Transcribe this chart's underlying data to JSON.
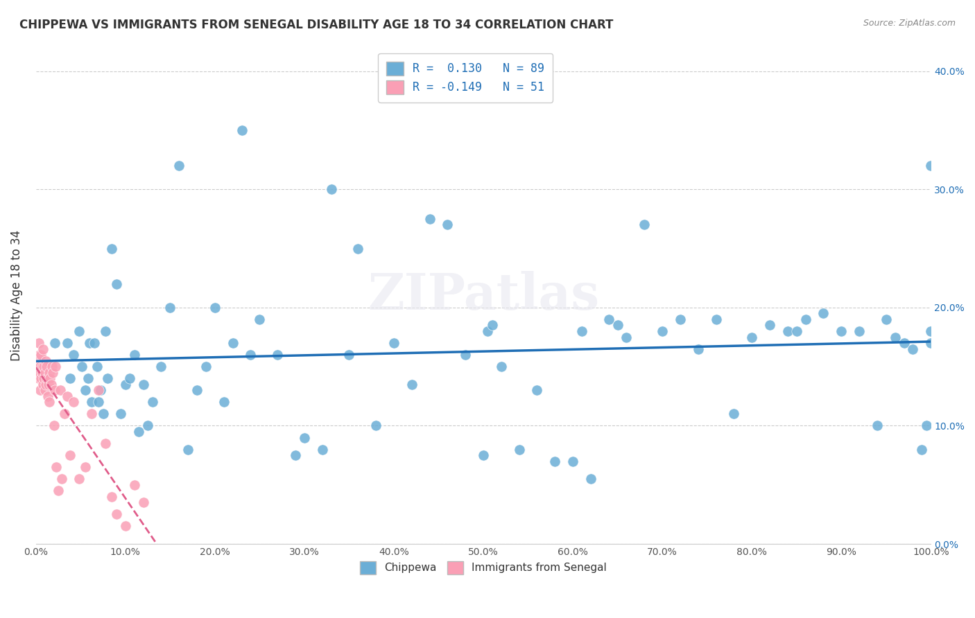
{
  "title": "CHIPPEWA VS IMMIGRANTS FROM SENEGAL DISABILITY AGE 18 TO 34 CORRELATION CHART",
  "source_text": "Source: ZipAtlas.com",
  "xlabel": "",
  "ylabel": "Disability Age 18 to 34",
  "xlim": [
    0,
    100
  ],
  "ylim": [
    0,
    42
  ],
  "yticks": [
    0,
    10,
    20,
    30,
    40
  ],
  "xticks": [
    0,
    10,
    20,
    30,
    40,
    50,
    60,
    70,
    80,
    90,
    100
  ],
  "blue_R": 0.13,
  "blue_N": 89,
  "pink_R": -0.149,
  "pink_N": 51,
  "blue_color": "#6baed6",
  "pink_color": "#fa9fb5",
  "blue_line_color": "#1f6eb5",
  "pink_line_color": "#e05c8a",
  "watermark": "ZIPatlas",
  "legend_label_blue": "Chippewa",
  "legend_label_pink": "Immigrants from Senegal",
  "blue_x": [
    2.1,
    3.5,
    3.8,
    4.2,
    4.8,
    5.1,
    5.5,
    5.8,
    6.0,
    6.2,
    6.5,
    6.8,
    7.0,
    7.2,
    7.5,
    7.8,
    8.0,
    8.5,
    9.0,
    9.5,
    10.0,
    10.5,
    11.0,
    11.5,
    12.0,
    12.5,
    13.0,
    14.0,
    15.0,
    16.0,
    17.0,
    18.0,
    19.0,
    20.0,
    21.0,
    22.0,
    23.0,
    24.0,
    25.0,
    27.0,
    29.0,
    30.0,
    32.0,
    33.0,
    35.0,
    36.0,
    38.0,
    40.0,
    42.0,
    44.0,
    46.0,
    48.0,
    50.0,
    50.5,
    51.0,
    52.0,
    54.0,
    56.0,
    58.0,
    60.0,
    61.0,
    62.0,
    64.0,
    65.0,
    66.0,
    68.0,
    70.0,
    72.0,
    74.0,
    76.0,
    78.0,
    80.0,
    82.0,
    84.0,
    85.0,
    86.0,
    88.0,
    90.0,
    92.0,
    94.0,
    95.0,
    96.0,
    97.0,
    98.0,
    99.0,
    99.5,
    100.0,
    100.0,
    100.0
  ],
  "blue_y": [
    17.0,
    17.0,
    14.0,
    16.0,
    18.0,
    15.0,
    13.0,
    14.0,
    17.0,
    12.0,
    17.0,
    15.0,
    12.0,
    13.0,
    11.0,
    18.0,
    14.0,
    25.0,
    22.0,
    11.0,
    13.5,
    14.0,
    16.0,
    9.5,
    13.5,
    10.0,
    12.0,
    15.0,
    20.0,
    32.0,
    8.0,
    13.0,
    15.0,
    20.0,
    12.0,
    17.0,
    35.0,
    16.0,
    19.0,
    16.0,
    7.5,
    9.0,
    8.0,
    30.0,
    16.0,
    25.0,
    10.0,
    17.0,
    13.5,
    27.5,
    27.0,
    16.0,
    7.5,
    18.0,
    18.5,
    15.0,
    8.0,
    13.0,
    7.0,
    7.0,
    18.0,
    5.5,
    19.0,
    18.5,
    17.5,
    27.0,
    18.0,
    19.0,
    16.5,
    19.0,
    11.0,
    17.5,
    18.5,
    18.0,
    18.0,
    19.0,
    19.5,
    18.0,
    18.0,
    10.0,
    19.0,
    17.5,
    17.0,
    16.5,
    8.0,
    10.0,
    32.0,
    18.0,
    17.0
  ],
  "pink_x": [
    0.2,
    0.3,
    0.3,
    0.4,
    0.4,
    0.5,
    0.5,
    0.6,
    0.6,
    0.7,
    0.7,
    0.8,
    0.8,
    0.9,
    0.9,
    1.0,
    1.0,
    1.1,
    1.1,
    1.2,
    1.2,
    1.3,
    1.3,
    1.4,
    1.5,
    1.5,
    1.6,
    1.7,
    1.8,
    1.9,
    2.0,
    2.1,
    2.2,
    2.3,
    2.5,
    2.7,
    2.9,
    3.2,
    3.5,
    3.8,
    4.2,
    4.8,
    5.5,
    6.2,
    7.0,
    7.8,
    8.5,
    9.0,
    10.0,
    11.0,
    12.0
  ],
  "pink_y": [
    15.5,
    14.0,
    17.0,
    16.0,
    14.5,
    15.0,
    13.0,
    16.0,
    14.0,
    15.0,
    14.5,
    16.5,
    13.5,
    15.0,
    14.0,
    14.5,
    13.0,
    15.5,
    13.5,
    15.0,
    14.0,
    14.0,
    12.5,
    13.5,
    14.5,
    12.0,
    14.0,
    13.5,
    15.0,
    14.5,
    10.0,
    13.0,
    15.0,
    6.5,
    4.5,
    13.0,
    5.5,
    11.0,
    12.5,
    7.5,
    12.0,
    5.5,
    6.5,
    11.0,
    13.0,
    8.5,
    4.0,
    2.5,
    1.5,
    5.0,
    3.5
  ]
}
